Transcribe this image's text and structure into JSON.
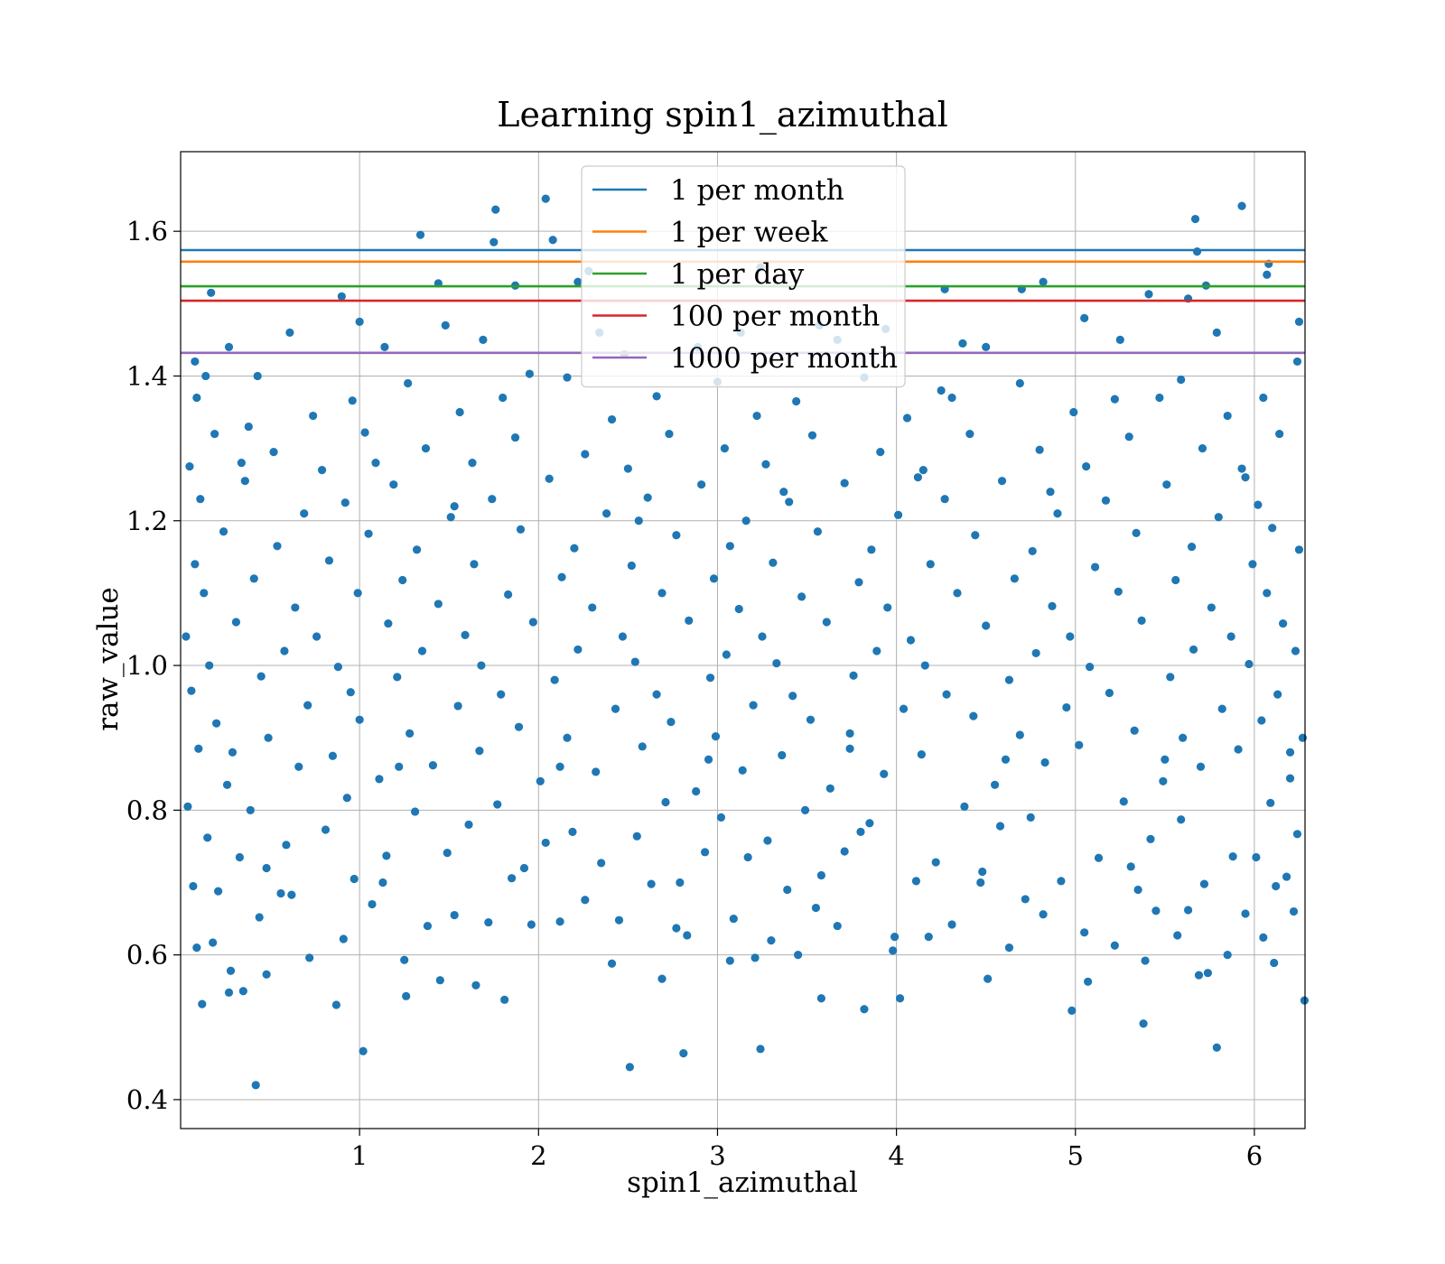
{
  "chart_data": {
    "type": "scatter",
    "title": "Learning spin1_azimuthal",
    "xlabel": "spin1_azimuthal",
    "ylabel": "raw_value",
    "xlim": [
      0.0,
      6.283
    ],
    "ylim": [
      0.36,
      1.71
    ],
    "xticks": [
      1,
      2,
      3,
      4,
      5,
      6
    ],
    "yticks": [
      0.4,
      0.6,
      0.8,
      1.0,
      1.2,
      1.4,
      1.6
    ],
    "xtick_labels": [
      "1",
      "2",
      "3",
      "4",
      "5",
      "6"
    ],
    "ytick_labels": [
      "0.4",
      "0.6",
      "0.8",
      "1.0",
      "1.2",
      "1.4",
      "1.6"
    ],
    "grid": true,
    "legend_position": "top-center",
    "point_color": "#1f77b4",
    "reference_lines": [
      {
        "name": "1 per month",
        "y": 1.574,
        "color": "#1f77b4"
      },
      {
        "name": "1 per week",
        "y": 1.558,
        "color": "#ff7f0e"
      },
      {
        "name": "1 per day",
        "y": 1.524,
        "color": "#2ca02c"
      },
      {
        "name": "100 per month",
        "y": 1.504,
        "color": "#d62728"
      },
      {
        "name": "1000 per month",
        "y": 1.432,
        "color": "#9467bd"
      }
    ],
    "points": [
      [
        0.42,
        0.42
      ],
      [
        2.51,
        0.445
      ],
      [
        3.24,
        0.47
      ],
      [
        1.02,
        0.467
      ],
      [
        2.81,
        0.464
      ],
      [
        5.79,
        0.472
      ],
      [
        5.38,
        0.505
      ],
      [
        4.98,
        0.523
      ],
      [
        3.82,
        0.525
      ],
      [
        0.87,
        0.531
      ],
      [
        0.12,
        0.532
      ],
      [
        1.81,
        0.538
      ],
      [
        3.58,
        0.54
      ],
      [
        4.02,
        0.54
      ],
      [
        6.28,
        0.537
      ],
      [
        1.26,
        0.543
      ],
      [
        0.27,
        0.548
      ],
      [
        0.35,
        0.55
      ],
      [
        5.07,
        0.563
      ],
      [
        4.51,
        0.567
      ],
      [
        2.69,
        0.567
      ],
      [
        0.48,
        0.573
      ],
      [
        5.74,
        0.575
      ],
      [
        5.69,
        0.572
      ],
      [
        1.45,
        0.565
      ],
      [
        1.65,
        0.558
      ],
      [
        0.28,
        0.578
      ],
      [
        2.41,
        0.588
      ],
      [
        6.11,
        0.589
      ],
      [
        5.39,
        0.592
      ],
      [
        1.25,
        0.593
      ],
      [
        3.07,
        0.592
      ],
      [
        3.45,
        0.6
      ],
      [
        3.21,
        0.596
      ],
      [
        0.72,
        0.596
      ],
      [
        4.18,
        0.625
      ],
      [
        5.57,
        0.627
      ],
      [
        0.18,
        0.617
      ],
      [
        0.91,
        0.622
      ],
      [
        2.12,
        0.646
      ],
      [
        0.09,
        0.61
      ],
      [
        1.53,
        0.655
      ],
      [
        3.99,
        0.625
      ],
      [
        0.62,
        0.683
      ],
      [
        1.96,
        0.642
      ],
      [
        4.63,
        0.61
      ],
      [
        2.83,
        0.627
      ],
      [
        3.3,
        0.62
      ],
      [
        5.85,
        0.6
      ],
      [
        6.05,
        0.624
      ],
      [
        0.21,
        0.688
      ],
      [
        1.38,
        0.64
      ],
      [
        2.45,
        0.648
      ],
      [
        3.67,
        0.64
      ],
      [
        4.31,
        0.642
      ],
      [
        5.22,
        0.613
      ],
      [
        5.45,
        0.661
      ],
      [
        0.56,
        0.685
      ],
      [
        1.07,
        0.67
      ],
      [
        2.26,
        0.676
      ],
      [
        3.09,
        0.65
      ],
      [
        3.98,
        0.606
      ],
      [
        4.82,
        0.656
      ],
      [
        5.63,
        0.662
      ],
      [
        6.22,
        0.66
      ],
      [
        0.44,
        0.652
      ],
      [
        1.72,
        0.645
      ],
      [
        2.77,
        0.637
      ],
      [
        3.55,
        0.665
      ],
      [
        4.72,
        0.677
      ],
      [
        5.05,
        0.631
      ],
      [
        5.95,
        0.657
      ],
      [
        0.07,
        0.695
      ],
      [
        0.97,
        0.705
      ],
      [
        1.85,
        0.706
      ],
      [
        2.63,
        0.698
      ],
      [
        3.39,
        0.69
      ],
      [
        4.11,
        0.702
      ],
      [
        4.92,
        0.702
      ],
      [
        5.72,
        0.698
      ],
      [
        6.18,
        0.708
      ],
      [
        0.33,
        0.735
      ],
      [
        1.15,
        0.737
      ],
      [
        2.04,
        0.755
      ],
      [
        2.93,
        0.742
      ],
      [
        3.71,
        0.743
      ],
      [
        4.48,
        0.715
      ],
      [
        5.31,
        0.722
      ],
      [
        6.01,
        0.735
      ],
      [
        0.59,
        0.752
      ],
      [
        1.49,
        0.741
      ],
      [
        2.35,
        0.727
      ],
      [
        3.17,
        0.735
      ],
      [
        4.22,
        0.728
      ],
      [
        5.13,
        0.734
      ],
      [
        5.88,
        0.736
      ],
      [
        0.15,
        0.762
      ],
      [
        0.81,
        0.773
      ],
      [
        1.61,
        0.78
      ],
      [
        2.55,
        0.764
      ],
      [
        3.28,
        0.758
      ],
      [
        3.8,
        0.77
      ],
      [
        4.58,
        0.778
      ],
      [
        5.42,
        0.76
      ],
      [
        6.24,
        0.767
      ],
      [
        0.39,
        0.8
      ],
      [
        1.31,
        0.798
      ],
      [
        2.19,
        0.77
      ],
      [
        3.02,
        0.79
      ],
      [
        3.85,
        0.782
      ],
      [
        4.75,
        0.79
      ],
      [
        5.59,
        0.787
      ],
      [
        0.04,
        0.805
      ],
      [
        0.93,
        0.817
      ],
      [
        1.77,
        0.808
      ],
      [
        2.71,
        0.811
      ],
      [
        3.49,
        0.8
      ],
      [
        4.38,
        0.805
      ],
      [
        5.27,
        0.812
      ],
      [
        6.09,
        0.81
      ],
      [
        0.26,
        0.835
      ],
      [
        1.11,
        0.843
      ],
      [
        2.01,
        0.84
      ],
      [
        2.88,
        0.826
      ],
      [
        3.63,
        0.83
      ],
      [
        4.55,
        0.835
      ],
      [
        5.49,
        0.84
      ],
      [
        6.2,
        0.844
      ],
      [
        0.66,
        0.86
      ],
      [
        1.41,
        0.862
      ],
      [
        2.32,
        0.853
      ],
      [
        3.14,
        0.855
      ],
      [
        3.93,
        0.85
      ],
      [
        4.83,
        0.866
      ],
      [
        5.7,
        0.86
      ],
      [
        0.1,
        0.885
      ],
      [
        0.85,
        0.875
      ],
      [
        1.67,
        0.882
      ],
      [
        2.58,
        0.888
      ],
      [
        3.36,
        0.876
      ],
      [
        4.14,
        0.877
      ],
      [
        5.02,
        0.89
      ],
      [
        5.91,
        0.884
      ],
      [
        0.49,
        0.9
      ],
      [
        1.28,
        0.906
      ],
      [
        2.16,
        0.9
      ],
      [
        2.99,
        0.902
      ],
      [
        3.74,
        0.906
      ],
      [
        4.69,
        0.904
      ],
      [
        5.6,
        0.9
      ],
      [
        6.27,
        0.9
      ],
      [
        0.2,
        0.92
      ],
      [
        1.0,
        0.925
      ],
      [
        1.89,
        0.915
      ],
      [
        2.74,
        0.922
      ],
      [
        3.52,
        0.925
      ],
      [
        4.43,
        0.93
      ],
      [
        5.33,
        0.91
      ],
      [
        6.04,
        0.924
      ],
      [
        0.71,
        0.945
      ],
      [
        1.55,
        0.944
      ],
      [
        2.43,
        0.94
      ],
      [
        3.2,
        0.945
      ],
      [
        4.04,
        0.94
      ],
      [
        4.95,
        0.942
      ],
      [
        5.82,
        0.94
      ],
      [
        0.06,
        0.965
      ],
      [
        0.95,
        0.963
      ],
      [
        1.79,
        0.96
      ],
      [
        2.66,
        0.96
      ],
      [
        3.42,
        0.958
      ],
      [
        4.28,
        0.96
      ],
      [
        5.19,
        0.962
      ],
      [
        6.13,
        0.96
      ],
      [
        0.45,
        0.985
      ],
      [
        1.21,
        0.984
      ],
      [
        2.09,
        0.98
      ],
      [
        2.96,
        0.983
      ],
      [
        3.76,
        0.986
      ],
      [
        4.63,
        0.98
      ],
      [
        5.53,
        0.984
      ],
      [
        0.16,
        1.0
      ],
      [
        0.88,
        0.998
      ],
      [
        1.68,
        1.0
      ],
      [
        2.54,
        1.005
      ],
      [
        3.33,
        1.003
      ],
      [
        4.16,
        1.0
      ],
      [
        5.08,
        0.998
      ],
      [
        5.97,
        1.002
      ],
      [
        0.58,
        1.02
      ],
      [
        1.35,
        1.02
      ],
      [
        2.22,
        1.022
      ],
      [
        3.05,
        1.015
      ],
      [
        3.89,
        1.02
      ],
      [
        4.78,
        1.017
      ],
      [
        5.66,
        1.022
      ],
      [
        6.23,
        1.02
      ],
      [
        0.03,
        1.04
      ],
      [
        0.76,
        1.04
      ],
      [
        1.59,
        1.042
      ],
      [
        2.47,
        1.04
      ],
      [
        3.25,
        1.04
      ],
      [
        4.08,
        1.035
      ],
      [
        4.97,
        1.04
      ],
      [
        5.87,
        1.04
      ],
      [
        0.31,
        1.06
      ],
      [
        1.16,
        1.058
      ],
      [
        1.97,
        1.06
      ],
      [
        2.84,
        1.062
      ],
      [
        3.61,
        1.06
      ],
      [
        4.5,
        1.055
      ],
      [
        5.37,
        1.062
      ],
      [
        6.16,
        1.058
      ],
      [
        0.64,
        1.08
      ],
      [
        1.44,
        1.085
      ],
      [
        2.3,
        1.08
      ],
      [
        3.12,
        1.078
      ],
      [
        3.95,
        1.08
      ],
      [
        4.87,
        1.082
      ],
      [
        5.76,
        1.08
      ],
      [
        0.13,
        1.1
      ],
      [
        0.99,
        1.1
      ],
      [
        1.83,
        1.098
      ],
      [
        2.69,
        1.1
      ],
      [
        3.47,
        1.095
      ],
      [
        4.34,
        1.1
      ],
      [
        5.24,
        1.102
      ],
      [
        6.07,
        1.1
      ],
      [
        0.41,
        1.12
      ],
      [
        1.24,
        1.118
      ],
      [
        2.13,
        1.122
      ],
      [
        2.98,
        1.12
      ],
      [
        3.79,
        1.115
      ],
      [
        4.66,
        1.12
      ],
      [
        5.56,
        1.118
      ],
      [
        0.08,
        1.14
      ],
      [
        0.83,
        1.145
      ],
      [
        1.64,
        1.14
      ],
      [
        2.52,
        1.138
      ],
      [
        3.31,
        1.142
      ],
      [
        4.19,
        1.14
      ],
      [
        5.11,
        1.136
      ],
      [
        5.99,
        1.14
      ],
      [
        0.54,
        1.165
      ],
      [
        1.32,
        1.16
      ],
      [
        2.2,
        1.162
      ],
      [
        3.07,
        1.165
      ],
      [
        3.86,
        1.16
      ],
      [
        4.76,
        1.158
      ],
      [
        5.65,
        1.164
      ],
      [
        6.25,
        1.16
      ],
      [
        0.24,
        1.185
      ],
      [
        1.05,
        1.182
      ],
      [
        1.9,
        1.188
      ],
      [
        2.77,
        1.18
      ],
      [
        3.56,
        1.185
      ],
      [
        4.44,
        1.18
      ],
      [
        5.34,
        1.183
      ],
      [
        6.1,
        1.19
      ],
      [
        0.69,
        1.21
      ],
      [
        1.51,
        1.205
      ],
      [
        2.38,
        1.21
      ],
      [
        3.16,
        1.2
      ],
      [
        4.01,
        1.208
      ],
      [
        4.9,
        1.21
      ],
      [
        5.8,
        1.205
      ],
      [
        0.11,
        1.23
      ],
      [
        0.92,
        1.225
      ],
      [
        1.74,
        1.23
      ],
      [
        2.61,
        1.232
      ],
      [
        3.4,
        1.226
      ],
      [
        4.27,
        1.23
      ],
      [
        5.17,
        1.228
      ],
      [
        6.02,
        1.222
      ],
      [
        0.36,
        1.255
      ],
      [
        1.19,
        1.25
      ],
      [
        2.06,
        1.258
      ],
      [
        2.91,
        1.25
      ],
      [
        3.71,
        1.252
      ],
      [
        4.59,
        1.255
      ],
      [
        5.51,
        1.25
      ],
      [
        0.05,
        1.275
      ],
      [
        0.79,
        1.27
      ],
      [
        1.63,
        1.28
      ],
      [
        2.5,
        1.272
      ],
      [
        3.27,
        1.278
      ],
      [
        4.15,
        1.27
      ],
      [
        5.06,
        1.275
      ],
      [
        5.93,
        1.272
      ],
      [
        0.52,
        1.295
      ],
      [
        1.37,
        1.3
      ],
      [
        2.26,
        1.292
      ],
      [
        3.04,
        1.3
      ],
      [
        3.91,
        1.295
      ],
      [
        4.8,
        1.298
      ],
      [
        5.71,
        1.3
      ],
      [
        0.19,
        1.32
      ],
      [
        1.03,
        1.322
      ],
      [
        1.87,
        1.315
      ],
      [
        2.73,
        1.32
      ],
      [
        3.53,
        1.318
      ],
      [
        4.41,
        1.32
      ],
      [
        5.3,
        1.316
      ],
      [
        6.14,
        1.32
      ],
      [
        0.74,
        1.345
      ],
      [
        1.56,
        1.35
      ],
      [
        2.41,
        1.34
      ],
      [
        3.22,
        1.345
      ],
      [
        4.06,
        1.342
      ],
      [
        4.99,
        1.35
      ],
      [
        5.85,
        1.345
      ],
      [
        0.09,
        1.37
      ],
      [
        0.96,
        1.366
      ],
      [
        1.8,
        1.37
      ],
      [
        2.66,
        1.372
      ],
      [
        3.44,
        1.365
      ],
      [
        4.31,
        1.37
      ],
      [
        5.22,
        1.368
      ],
      [
        6.05,
        1.37
      ],
      [
        0.43,
        1.4
      ],
      [
        1.27,
        1.39
      ],
      [
        2.16,
        1.398
      ],
      [
        3.0,
        1.392
      ],
      [
        3.82,
        1.398
      ],
      [
        4.69,
        1.39
      ],
      [
        5.59,
        1.395
      ],
      [
        0.14,
        1.4
      ],
      [
        1.95,
        1.403
      ],
      [
        4.25,
        1.38
      ],
      [
        5.47,
        1.37
      ],
      [
        0.27,
        1.44
      ],
      [
        1.14,
        1.44
      ],
      [
        1.69,
        1.45
      ],
      [
        2.89,
        1.44
      ],
      [
        3.67,
        1.45
      ],
      [
        4.37,
        1.445
      ],
      [
        5.25,
        1.45
      ],
      [
        6.24,
        1.42
      ],
      [
        0.61,
        1.46
      ],
      [
        1.48,
        1.47
      ],
      [
        2.34,
        1.46
      ],
      [
        3.13,
        1.46
      ],
      [
        4.5,
        1.44
      ],
      [
        5.79,
        1.46
      ],
      [
        0.08,
        1.42
      ],
      [
        1.0,
        1.475
      ],
      [
        2.48,
        1.43
      ],
      [
        3.94,
        1.465
      ],
      [
        5.05,
        1.48
      ],
      [
        6.25,
        1.475
      ],
      [
        0.17,
        1.515
      ],
      [
        0.9,
        1.51
      ],
      [
        1.44,
        1.528
      ],
      [
        2.22,
        1.53
      ],
      [
        3.24,
        1.55
      ],
      [
        4.27,
        1.52
      ],
      [
        4.7,
        1.52
      ],
      [
        5.41,
        1.513
      ],
      [
        6.07,
        1.54
      ],
      [
        1.87,
        1.525
      ],
      [
        2.28,
        1.545
      ],
      [
        3.57,
        1.47
      ],
      [
        4.82,
        1.53
      ],
      [
        5.63,
        1.507
      ],
      [
        5.73,
        1.525
      ],
      [
        6.08,
        1.555
      ],
      [
        1.34,
        1.595
      ],
      [
        1.75,
        1.585
      ],
      [
        2.08,
        1.588
      ],
      [
        5.68,
        1.572
      ],
      [
        1.76,
        1.63
      ],
      [
        2.04,
        1.645
      ],
      [
        5.67,
        1.617
      ],
      [
        5.93,
        1.635
      ],
      [
        0.34,
        1.28
      ],
      [
        0.38,
        1.33
      ],
      [
        1.09,
        1.28
      ],
      [
        1.53,
        1.22
      ],
      [
        2.56,
        1.2
      ],
      [
        3.37,
        1.24
      ],
      [
        4.12,
        1.26
      ],
      [
        4.86,
        1.24
      ],
      [
        5.95,
        1.26
      ],
      [
        0.48,
        0.72
      ],
      [
        1.13,
        0.7
      ],
      [
        1.92,
        0.72
      ],
      [
        2.79,
        0.7
      ],
      [
        3.58,
        0.71
      ],
      [
        4.47,
        0.7
      ],
      [
        5.35,
        0.69
      ],
      [
        6.12,
        0.695
      ],
      [
        0.29,
        0.88
      ],
      [
        1.22,
        0.86
      ],
      [
        2.12,
        0.86
      ],
      [
        2.95,
        0.87
      ],
      [
        3.74,
        0.885
      ],
      [
        4.61,
        0.87
      ],
      [
        5.5,
        0.87
      ],
      [
        6.2,
        0.88
      ]
    ]
  }
}
